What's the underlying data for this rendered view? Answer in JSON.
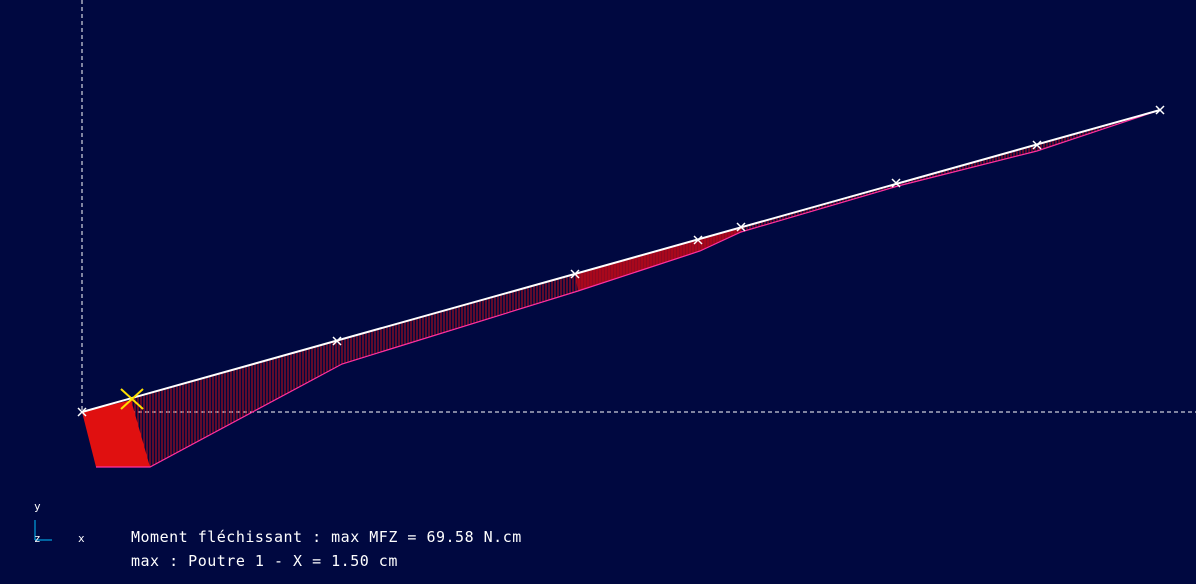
{
  "triad": {
    "y_label": "y",
    "z_label": "z",
    "x_label": "x"
  },
  "info": {
    "line1": "Moment fléchissant : max MFZ = 69.58 N.cm",
    "line2": "max : Poutre 1 - X = 1.50 cm"
  },
  "colors": {
    "background": "#000840",
    "beam": "#ffffff",
    "diagram_fill": "#e01010",
    "diagram_edge": "#ff30a0",
    "max_marker": "#ffe000",
    "guides": "#ffffff"
  }
}
